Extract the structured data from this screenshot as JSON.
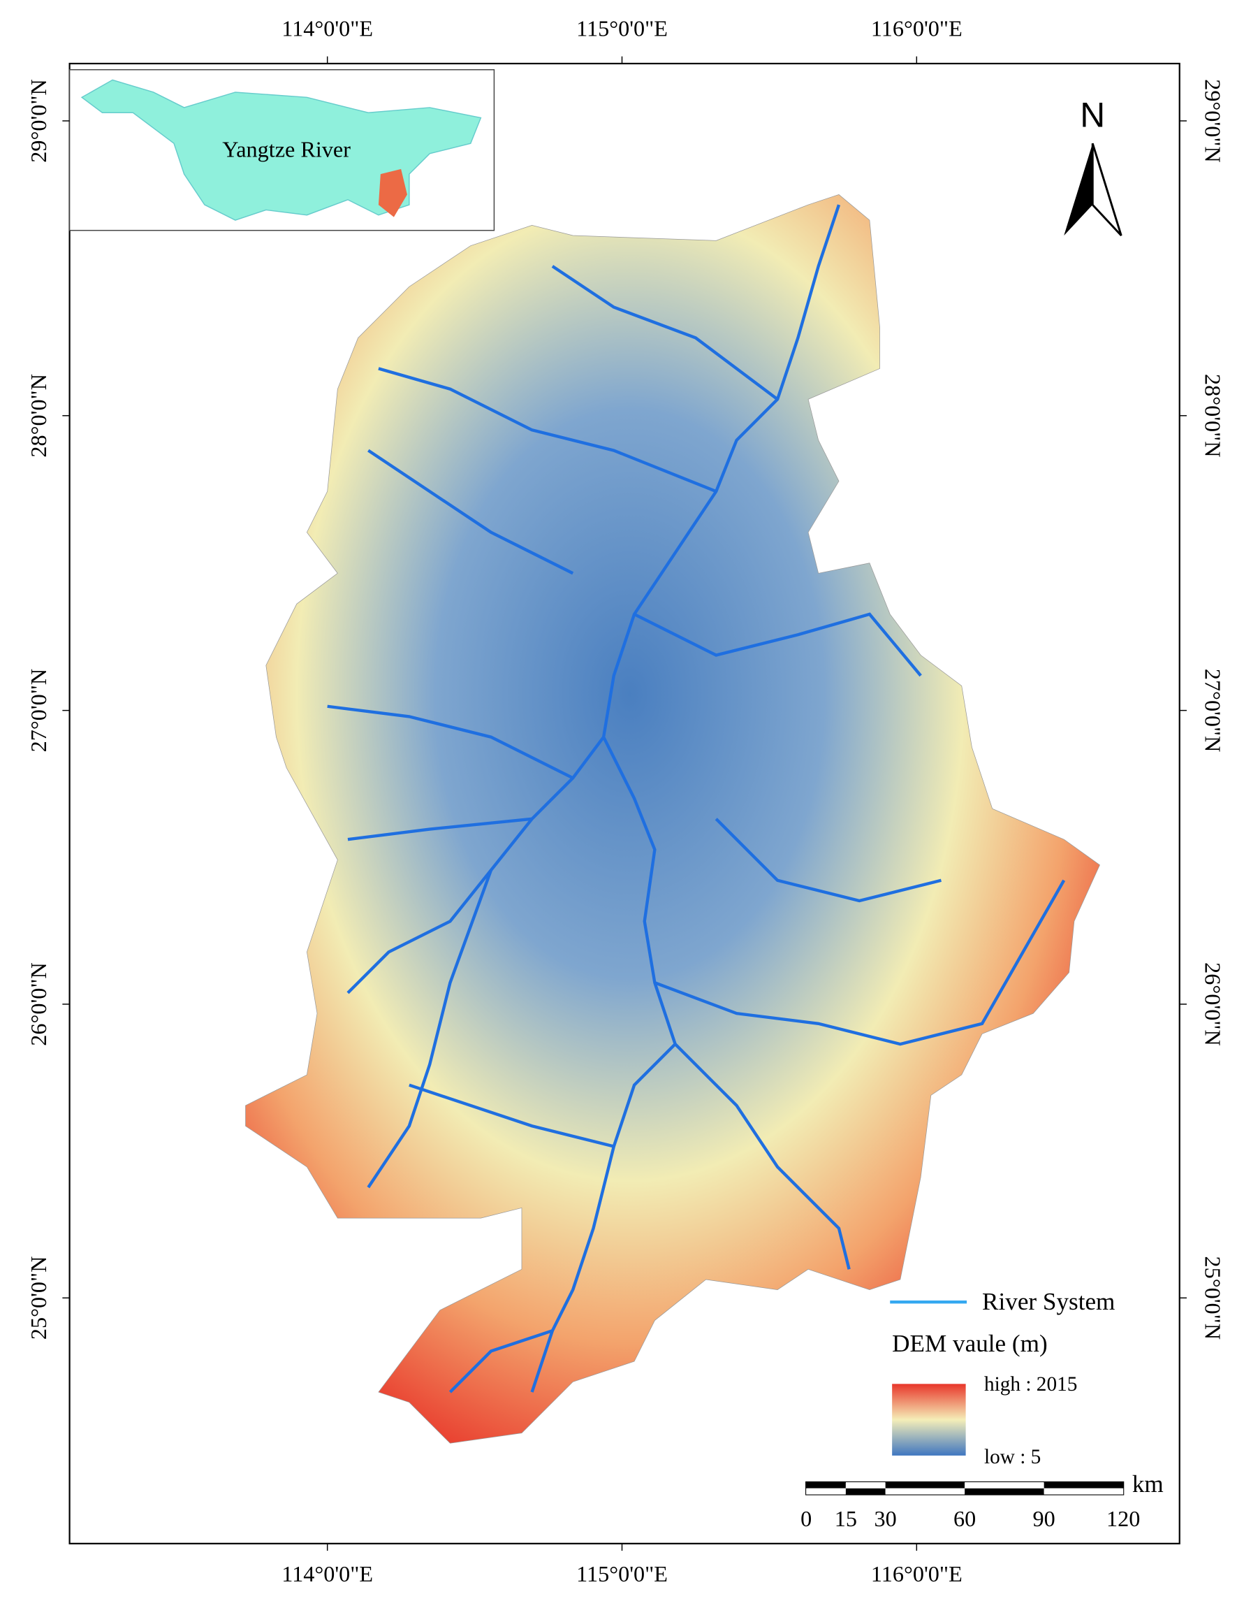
{
  "map": {
    "top_labels": [
      "114°0'0\"E",
      "115°0'0\"E",
      "116°0'0\"E"
    ],
    "bottom_labels": [
      "114°0'0\"E",
      "115°0'0\"E",
      "116°0'0\"E"
    ],
    "left_labels": [
      "29°0'0\"N",
      "28°0'0\"N",
      "27°0'0\"N",
      "26°0'0\"N",
      "25°0'0\"N"
    ],
    "right_labels": [
      "29°0'0\"N",
      "28°0'0\"N",
      "27°0'0\"N",
      "26°0'0\"N",
      "25°0'0\"N"
    ],
    "inset_label": "Yangtze River",
    "north_label": "N",
    "legend": {
      "river_label": "River System",
      "dem_title": "DEM vaule (m)",
      "high_label": "high : 2015",
      "low_label": "low : 5"
    },
    "scale_bar": {
      "unit": "km",
      "ticks": [
        0,
        15,
        30,
        60,
        90,
        120
      ]
    }
  }
}
